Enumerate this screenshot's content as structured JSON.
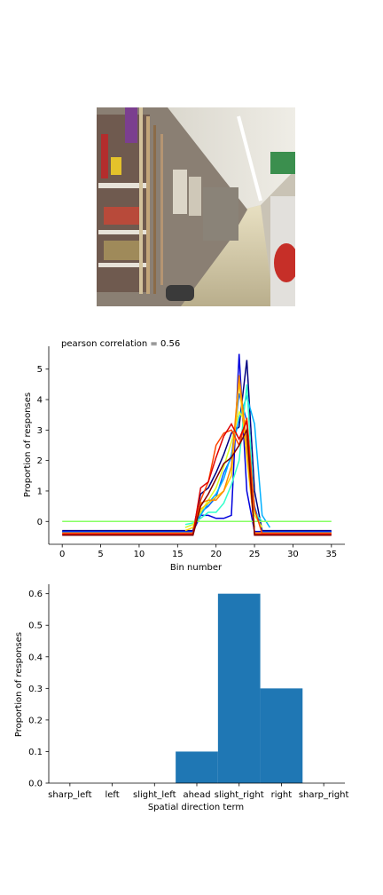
{
  "photo": {
    "description_icon": "store-aisle-photo"
  },
  "chart_data": [
    {
      "type": "line",
      "title": "pearson correlation = 0.56",
      "xlabel": "Bin number",
      "ylabel": "Proportion of responses",
      "xlim": [
        -1.75,
        36.75
      ],
      "ylim": [
        -0.75,
        5.75
      ],
      "xticks": [
        0,
        5,
        10,
        15,
        20,
        25,
        30,
        35
      ],
      "yticks": [
        0,
        1,
        2,
        3,
        4,
        5
      ],
      "grid": false,
      "series": [
        {
          "color": "#000080",
          "points": [
            [
              0,
              -0.3
            ],
            [
              17,
              -0.3
            ],
            [
              18,
              0.9
            ],
            [
              19,
              1.1
            ],
            [
              20,
              1.6
            ],
            [
              21,
              2.2
            ],
            [
              22,
              2.9
            ],
            [
              23,
              3.1
            ],
            [
              24,
              5.3
            ],
            [
              25,
              1.0
            ],
            [
              26,
              -0.3
            ],
            [
              35,
              -0.3
            ]
          ]
        },
        {
          "color": "#0000dd",
          "points": [
            [
              0,
              -0.33
            ],
            [
              17,
              -0.33
            ],
            [
              18,
              0.2
            ],
            [
              19,
              0.2
            ],
            [
              20,
              0.1
            ],
            [
              21,
              0.1
            ],
            [
              22,
              0.2
            ],
            [
              23,
              5.5
            ],
            [
              24,
              1.0
            ],
            [
              25,
              -0.33
            ],
            [
              35,
              -0.33
            ]
          ]
        },
        {
          "color": "#0060ff",
          "points": [
            [
              0,
              -0.35
            ],
            [
              17,
              -0.35
            ],
            [
              18,
              0.3
            ],
            [
              19,
              0.5
            ],
            [
              20,
              0.8
            ],
            [
              21,
              1.6
            ],
            [
              22,
              2.1
            ],
            [
              23,
              4.2
            ],
            [
              24,
              3.3
            ],
            [
              25,
              0.5
            ],
            [
              26,
              -0.35
            ],
            [
              35,
              -0.35
            ]
          ]
        },
        {
          "color": "#00b0ff",
          "points": [
            [
              16,
              -0.2
            ],
            [
              17,
              -0.1
            ],
            [
              18,
              0.2
            ],
            [
              19,
              0.6
            ],
            [
              20,
              0.9
            ],
            [
              21,
              1.4
            ],
            [
              22,
              2.2
            ],
            [
              23,
              3.4
            ],
            [
              24,
              4.1
            ],
            [
              25,
              3.2
            ],
            [
              26,
              0.2
            ],
            [
              27,
              -0.2
            ]
          ]
        },
        {
          "color": "#33ffcc",
          "points": [
            [
              16,
              -0.1
            ],
            [
              17,
              -0.05
            ],
            [
              18,
              0.1
            ],
            [
              19,
              0.3
            ],
            [
              20,
              0.3
            ],
            [
              21,
              0.6
            ],
            [
              22,
              1.2
            ],
            [
              23,
              2.0
            ],
            [
              24,
              4.5
            ],
            [
              25,
              0.3
            ],
            [
              26,
              0.0
            ]
          ]
        },
        {
          "color": "#88ff66",
          "points": [
            [
              0,
              0.0
            ],
            [
              17,
              0.0
            ],
            [
              18,
              0.0
            ],
            [
              19,
              0.0
            ],
            [
              20,
              0.0
            ],
            [
              21,
              0.0
            ],
            [
              22,
              0.0
            ],
            [
              23,
              0.0
            ],
            [
              24,
              0.0
            ],
            [
              25,
              0.0
            ],
            [
              35,
              0.0
            ]
          ]
        },
        {
          "color": "#ddff22",
          "points": [
            [
              16,
              -0.2
            ],
            [
              17,
              -0.1
            ],
            [
              18,
              0.3
            ],
            [
              19,
              0.7
            ],
            [
              20,
              1.1
            ],
            [
              21,
              1.8
            ],
            [
              22,
              2.6
            ],
            [
              23,
              3.6
            ],
            [
              24,
              3.2
            ],
            [
              25,
              0.2
            ],
            [
              26,
              -0.2
            ]
          ]
        },
        {
          "color": "#ffcc00",
          "points": [
            [
              16,
              -0.3
            ],
            [
              17,
              -0.2
            ],
            [
              18,
              0.4
            ],
            [
              19,
              0.6
            ],
            [
              20,
              0.8
            ],
            [
              21,
              1.0
            ],
            [
              22,
              1.5
            ],
            [
              23,
              4.6
            ],
            [
              24,
              2.1
            ],
            [
              25,
              -0.2
            ]
          ]
        },
        {
          "color": "#ff8800",
          "points": [
            [
              0,
              -0.38
            ],
            [
              17,
              -0.38
            ],
            [
              18,
              0.6
            ],
            [
              19,
              0.7
            ],
            [
              20,
              0.7
            ],
            [
              21,
              1.0
            ],
            [
              22,
              1.8
            ],
            [
              23,
              4.8
            ],
            [
              24,
              2.5
            ],
            [
              25,
              -0.38
            ],
            [
              35,
              -0.38
            ]
          ]
        },
        {
          "color": "#ff4400",
          "points": [
            [
              0,
              -0.4
            ],
            [
              17,
              -0.4
            ],
            [
              18,
              0.7
            ],
            [
              19,
              1.3
            ],
            [
              20,
              2.5
            ],
            [
              21,
              2.9
            ],
            [
              22,
              3.0
            ],
            [
              23,
              2.5
            ],
            [
              24,
              3.4
            ],
            [
              25,
              0.4
            ],
            [
              26,
              -0.4
            ],
            [
              35,
              -0.4
            ]
          ]
        },
        {
          "color": "#dd0000",
          "points": [
            [
              0,
              -0.42
            ],
            [
              17,
              -0.42
            ],
            [
              18,
              1.1
            ],
            [
              19,
              1.3
            ],
            [
              20,
              2.1
            ],
            [
              21,
              2.8
            ],
            [
              22,
              3.2
            ],
            [
              23,
              2.7
            ],
            [
              24,
              3.3
            ],
            [
              25,
              -0.42
            ],
            [
              35,
              -0.42
            ]
          ]
        },
        {
          "color": "#800000",
          "points": [
            [
              0,
              -0.45
            ],
            [
              17,
              -0.45
            ],
            [
              18,
              0.5
            ],
            [
              19,
              0.9
            ],
            [
              20,
              1.4
            ],
            [
              21,
              1.9
            ],
            [
              22,
              2.1
            ],
            [
              23,
              2.5
            ],
            [
              24,
              3.0
            ],
            [
              25,
              -0.45
            ],
            [
              35,
              -0.45
            ]
          ]
        }
      ]
    },
    {
      "type": "bar",
      "xlabel": "Spatial direction term",
      "ylabel": "Proportion of responses",
      "categories": [
        "sharp_left",
        "left",
        "slight_left",
        "ahead",
        "slight_right",
        "right",
        "sharp_right"
      ],
      "values": [
        0.0,
        0.0,
        0.0,
        0.1,
        0.6,
        0.3,
        0.0
      ],
      "ylim": [
        0.0,
        0.63
      ],
      "yticks": [
        "0.0",
        "0.1",
        "0.2",
        "0.3",
        "0.4",
        "0.5",
        "0.6"
      ],
      "bar_color": "#1f77b4",
      "grid": false
    }
  ]
}
